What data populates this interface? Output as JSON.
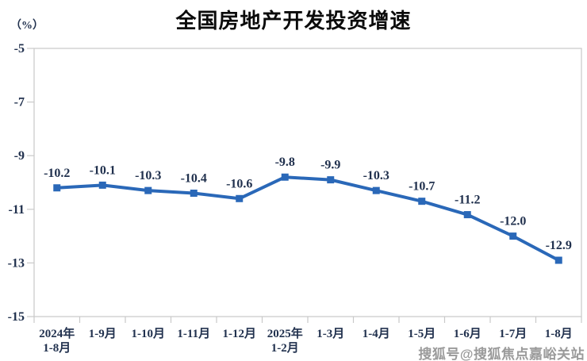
{
  "chart": {
    "title": "全国房地产开发投资增速",
    "unit": "（%）"
  },
  "watermark": {
    "text": "搜狐号@搜狐焦点嘉峪关站"
  },
  "chart_data": {
    "type": "line",
    "title": "全国房地产开发投资增速",
    "ylabel": "（%）",
    "xlabel": "",
    "categories": [
      "2024年\n1-8月",
      "1-9月",
      "1-10月",
      "1-11月",
      "1-12月",
      "2025年\n1-2月",
      "1-3月",
      "1-4月",
      "1-5月",
      "1-6月",
      "1-7月",
      "1-8月"
    ],
    "values": [
      -10.2,
      -10.1,
      -10.3,
      -10.4,
      -10.6,
      -9.8,
      -9.9,
      -10.3,
      -10.7,
      -11.2,
      -12.0,
      -12.9
    ],
    "ylim": [
      -15,
      -5
    ],
    "yticks": [
      -5,
      -7,
      -9,
      -11,
      -13,
      -15
    ],
    "grid": false,
    "legend": false,
    "marker": "square",
    "line_color": "#2a68b8",
    "axis_color": "#c9c9c9",
    "label_color": "#21314e"
  }
}
